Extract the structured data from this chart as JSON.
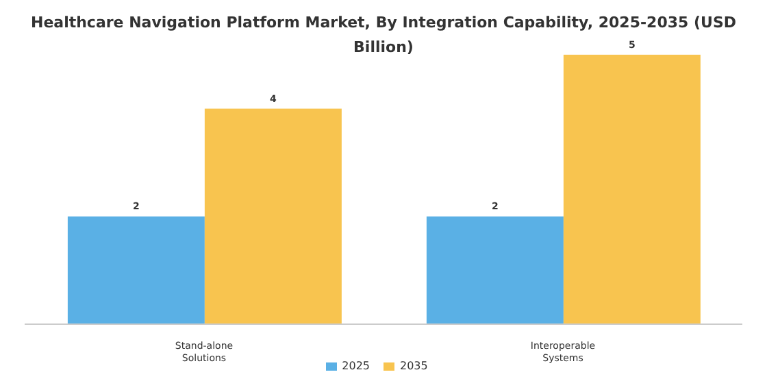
{
  "chart_data": {
    "type": "bar",
    "title": "Healthcare Navigation Platform Market, By Integration Capability, 2025-2035 (USD Billion)",
    "categories": [
      "Stand-alone Solutions",
      "Interoperable Systems"
    ],
    "series": [
      {
        "name": "2025",
        "color": "#5ab0e5",
        "values": [
          2,
          2
        ]
      },
      {
        "name": "2035",
        "color": "#f8c44f",
        "values": [
          4,
          5
        ]
      }
    ],
    "data_labels": true,
    "legend": "bottom",
    "grid": false
  }
}
